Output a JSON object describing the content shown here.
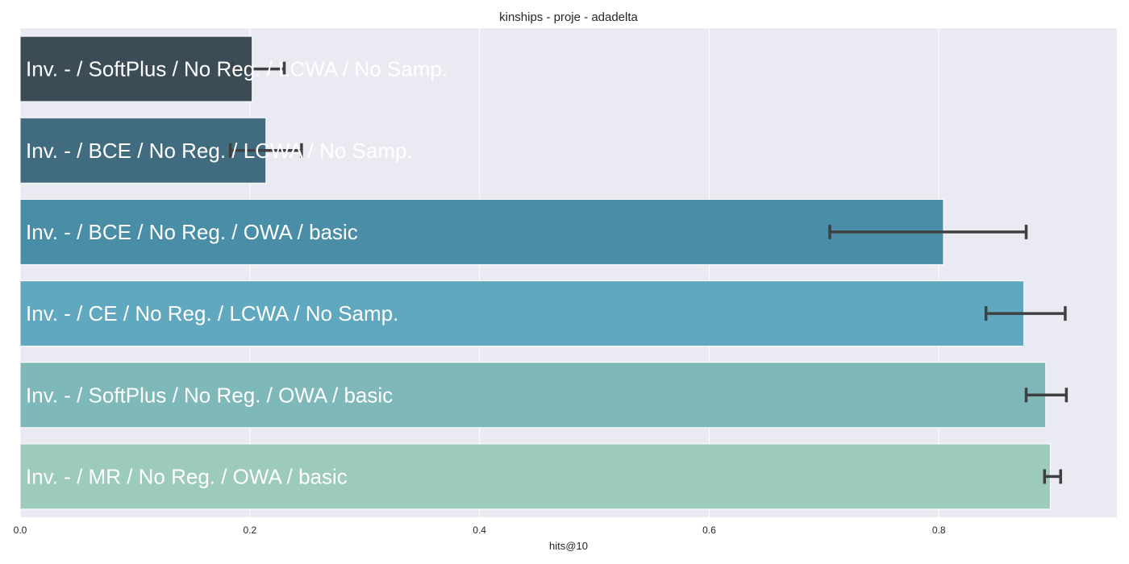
{
  "chart_data": {
    "type": "bar",
    "orientation": "horizontal",
    "title": "kinships - proje - adadelta",
    "xlabel": "hits@10",
    "ylabel": "",
    "xlim": [
      0,
      0.955
    ],
    "xticks": [
      0.0,
      0.2,
      0.4,
      0.6,
      0.8
    ],
    "xtick_labels": [
      "0.0",
      "0.2",
      "0.4",
      "0.6",
      "0.8"
    ],
    "grid": true,
    "categories": [
      "Inv. - / SoftPlus / No Reg. / LCWA / No Samp.",
      "Inv. - / BCE / No Reg. / LCWA / No Samp.",
      "Inv. - / BCE / No Reg. / OWA / basic",
      "Inv. - / CE / No Reg. / LCWA / No Samp.",
      "Inv. - / SoftPlus / No Reg. / OWA / basic",
      "Inv. - / MR / No Reg. / OWA / basic"
    ],
    "values": [
      0.202,
      0.214,
      0.804,
      0.874,
      0.893,
      0.897
    ],
    "error_bars": [
      [
        0.185,
        0.23
      ],
      [
        0.183,
        0.245
      ],
      [
        0.705,
        0.876
      ],
      [
        0.841,
        0.91
      ],
      [
        0.876,
        0.911
      ],
      [
        0.892,
        0.906
      ]
    ],
    "colors": [
      "#3b4c56",
      "#416c80",
      "#4a8da6",
      "#5fa8bf",
      "#7eb8b8",
      "#9ccabb"
    ],
    "background_color": "#eaeaf2",
    "grid_color": "#ffffff",
    "errorbar_color": "#404040"
  }
}
